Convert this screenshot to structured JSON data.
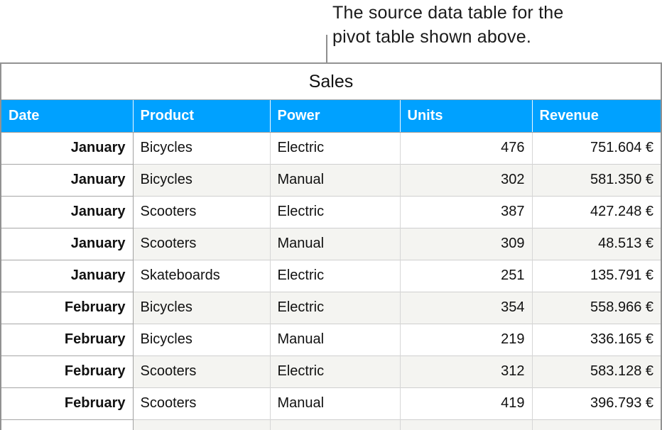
{
  "caption": {
    "line1": "The source data table for the",
    "line2": "pivot table shown above."
  },
  "table": {
    "title": "Sales",
    "columns": [
      "Date",
      "Product",
      "Power",
      "Units",
      "Revenue"
    ],
    "rows": [
      {
        "date": "January",
        "product": "Bicycles",
        "power": "Electric",
        "units": "476",
        "revenue": "751.604 €"
      },
      {
        "date": "January",
        "product": "Bicycles",
        "power": "Manual",
        "units": "302",
        "revenue": "581.350 €"
      },
      {
        "date": "January",
        "product": "Scooters",
        "power": "Electric",
        "units": "387",
        "revenue": "427.248 €"
      },
      {
        "date": "January",
        "product": "Scooters",
        "power": "Manual",
        "units": "309",
        "revenue": "48.513 €"
      },
      {
        "date": "January",
        "product": "Skateboards",
        "power": "Electric",
        "units": "251",
        "revenue": "135.791 €"
      },
      {
        "date": "February",
        "product": "Bicycles",
        "power": "Electric",
        "units": "354",
        "revenue": "558.966 €"
      },
      {
        "date": "February",
        "product": "Bicycles",
        "power": "Manual",
        "units": "219",
        "revenue": "336.165 €"
      },
      {
        "date": "February",
        "product": "Scooters",
        "power": "Electric",
        "units": "312",
        "revenue": "583.128 €"
      },
      {
        "date": "February",
        "product": "Scooters",
        "power": "Manual",
        "units": "419",
        "revenue": "396.793 €"
      },
      {
        "date": "",
        "product": "",
        "power": "",
        "units": "",
        "revenue": ""
      }
    ],
    "colors": {
      "header_bg": "#00A1FF",
      "header_text": "#FFFFFF",
      "alt_row_bg": "#F4F4F1"
    }
  }
}
